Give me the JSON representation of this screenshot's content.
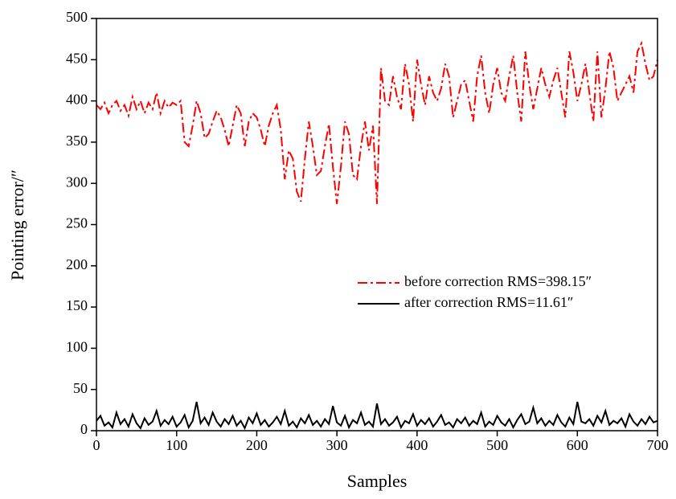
{
  "chart_data": {
    "type": "line",
    "xlabel": "Samples",
    "ylabel": "Pointing error/″",
    "x": [
      0,
      5,
      10,
      15,
      20,
      25,
      30,
      35,
      40,
      45,
      50,
      55,
      60,
      65,
      70,
      75,
      80,
      85,
      90,
      95,
      100,
      105,
      110,
      115,
      120,
      125,
      130,
      135,
      140,
      145,
      150,
      155,
      160,
      165,
      170,
      175,
      180,
      185,
      190,
      195,
      200,
      205,
      210,
      215,
      220,
      225,
      230,
      235,
      240,
      245,
      250,
      255,
      260,
      265,
      270,
      275,
      280,
      285,
      290,
      295,
      300,
      305,
      310,
      315,
      320,
      325,
      330,
      335,
      340,
      345,
      350,
      355,
      360,
      365,
      370,
      375,
      380,
      385,
      390,
      395,
      400,
      405,
      410,
      415,
      420,
      425,
      430,
      435,
      440,
      445,
      450,
      455,
      460,
      465,
      470,
      475,
      480,
      485,
      490,
      495,
      500,
      505,
      510,
      515,
      520,
      525,
      530,
      535,
      540,
      545,
      550,
      555,
      560,
      565,
      570,
      575,
      580,
      585,
      590,
      595,
      600,
      605,
      610,
      615,
      620,
      625,
      630,
      635,
      640,
      645,
      650,
      655,
      660,
      665,
      670,
      675,
      680,
      685,
      690,
      695,
      700
    ],
    "series": [
      {
        "name": "before correction RMS=398.15″",
        "color": "#ff0000",
        "style": "dashdot",
        "values": [
          395,
          390,
          398,
          385,
          395,
          400,
          388,
          395,
          382,
          405,
          390,
          400,
          385,
          398,
          390,
          410,
          385,
          400,
          392,
          398,
          395,
          400,
          350,
          345,
          370,
          400,
          385,
          355,
          360,
          375,
          388,
          380,
          365,
          345,
          370,
          395,
          385,
          345,
          375,
          385,
          380,
          365,
          345,
          370,
          385,
          395,
          365,
          305,
          340,
          330,
          290,
          278,
          330,
          375,
          345,
          310,
          315,
          345,
          372,
          320,
          275,
          320,
          375,
          360,
          310,
          305,
          345,
          375,
          340,
          370,
          275,
          440,
          400,
          395,
          430,
          405,
          390,
          445,
          420,
          375,
          450,
          420,
          395,
          430,
          410,
          400,
          415,
          445,
          430,
          380,
          400,
          420,
          425,
          400,
          375,
          430,
          455,
          410,
          385,
          420,
          440,
          410,
          400,
          430,
          455,
          410,
          375,
          460,
          420,
          390,
          415,
          440,
          420,
          405,
          425,
          440,
          410,
          380,
          460,
          435,
          400,
          420,
          445,
          410,
          375,
          460,
          380,
          415,
          460,
          440,
          400,
          410,
          420,
          430,
          410,
          460,
          470,
          445,
          425,
          430,
          450
        ]
      },
      {
        "name": "after correction RMS=11.61″",
        "color": "#000000",
        "style": "solid",
        "values": [
          12,
          18,
          6,
          10,
          4,
          22,
          8,
          14,
          5,
          20,
          9,
          3,
          15,
          7,
          11,
          24,
          6,
          13,
          8,
          17,
          5,
          10,
          19,
          4,
          12,
          35,
          9,
          16,
          7,
          22,
          11,
          5,
          14,
          8,
          18,
          6,
          12,
          3,
          16,
          9,
          21,
          7,
          13,
          5,
          10,
          17,
          8,
          24,
          6,
          11,
          4,
          15,
          9,
          19,
          7,
          12,
          5,
          14,
          8,
          30,
          10,
          6,
          18,
          4,
          13,
          9,
          22,
          7,
          11,
          5,
          33,
          8,
          14,
          6,
          10,
          17,
          4,
          12,
          9,
          20,
          6,
          13,
          8,
          15,
          5,
          11,
          19,
          7,
          10,
          4,
          14,
          9,
          16,
          6,
          12,
          8,
          22,
          5,
          11,
          7,
          18,
          10,
          6,
          14,
          4,
          13,
          20,
          8,
          11,
          28,
          9,
          15,
          6,
          12,
          7,
          19,
          10,
          5,
          16,
          8,
          35,
          11,
          9,
          14,
          6,
          18,
          10,
          24,
          7,
          12,
          9,
          15,
          5,
          20,
          11,
          6,
          14,
          8,
          17,
          10,
          12
        ]
      }
    ],
    "xlim": [
      0,
      700
    ],
    "xticks": [
      0,
      100,
      200,
      300,
      400,
      500,
      600,
      700
    ],
    "ylim": [
      0,
      500
    ],
    "yticks": [
      0,
      50,
      100,
      150,
      200,
      250,
      300,
      350,
      400,
      450,
      500
    ]
  }
}
